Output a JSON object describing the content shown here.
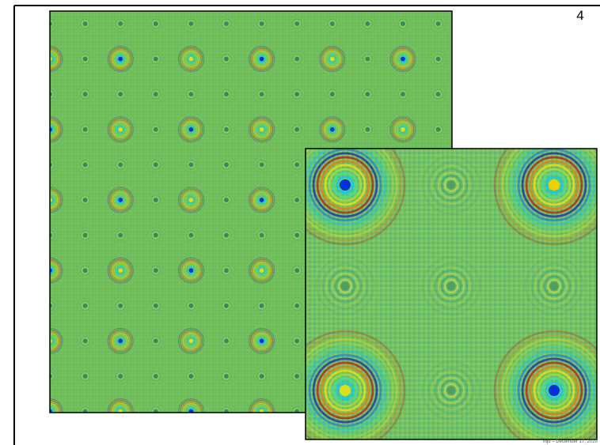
{
  "slide_number": "4",
  "footer": "mjd – December 17, 2020"
}
